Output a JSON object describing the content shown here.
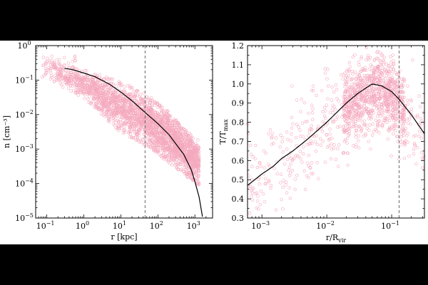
{
  "chart_data": [
    {
      "type": "scatter",
      "panel": "left",
      "title": "",
      "xlabel": "r [kpc]",
      "ylabel": "n [cm⁻³]",
      "xscale": "log",
      "yscale": "log",
      "xlim": [
        0.05,
        3000
      ],
      "ylim": [
        1e-05,
        1
      ],
      "grid": false,
      "x_ticks": [
        {
          "value": 0.1,
          "base": "10",
          "exp": "−1"
        },
        {
          "value": 1,
          "base": "10",
          "exp": "0"
        },
        {
          "value": 10,
          "base": "10",
          "exp": "1"
        },
        {
          "value": 100,
          "base": "10",
          "exp": "2"
        },
        {
          "value": 1000,
          "base": "10",
          "exp": "3"
        }
      ],
      "y_ticks": [
        {
          "value": 1e-05,
          "base": "10",
          "exp": "−5"
        },
        {
          "value": 0.0001,
          "base": "10",
          "exp": "−4"
        },
        {
          "value": 0.001,
          "base": "10",
          "exp": "−3"
        },
        {
          "value": 0.01,
          "base": "10",
          "exp": "−2"
        },
        {
          "value": 0.1,
          "base": "10",
          "exp": "−1"
        },
        {
          "value": 1,
          "base": "10",
          "exp": "0"
        }
      ],
      "vline_x": 45,
      "model_curve": {
        "x": [
          0.3,
          0.5,
          1,
          2,
          5,
          10,
          20,
          50,
          100,
          200,
          500,
          800,
          1000,
          1300,
          1600
        ],
        "y": [
          0.22,
          0.2,
          0.16,
          0.125,
          0.075,
          0.045,
          0.025,
          0.0105,
          0.0055,
          0.0026,
          0.0007,
          0.00025,
          0.000115,
          4e-05,
          1.1e-05
        ]
      },
      "scatter_cloud": {
        "description_points": [
          [
            0.08,
            0.4
          ],
          [
            0.15,
            0.2
          ],
          [
            0.5,
            0.15
          ],
          [
            1,
            0.09
          ],
          [
            2,
            0.05
          ],
          [
            5,
            0.03
          ],
          [
            10,
            0.02
          ],
          [
            20,
            0.012
          ],
          [
            50,
            0.006
          ],
          [
            100,
            0.003
          ],
          [
            200,
            0.0015
          ],
          [
            500,
            0.0006
          ],
          [
            1000,
            0.0003
          ]
        ],
        "upper_envelope": [
          [
            0.08,
            0.45
          ],
          [
            1,
            0.2
          ],
          [
            10,
            0.09
          ],
          [
            50,
            0.04
          ],
          [
            200,
            0.012
          ],
          [
            1000,
            0.002
          ]
        ],
        "lower_envelope": [
          [
            0.08,
            0.12
          ],
          [
            1,
            0.03
          ],
          [
            10,
            0.003
          ],
          [
            50,
            0.0012
          ],
          [
            200,
            0.0004
          ],
          [
            1200,
            9e-05
          ]
        ]
      },
      "marker_color": "#f4a9be",
      "curve_color": "#000000"
    },
    {
      "type": "scatter",
      "panel": "right",
      "title": "",
      "xlabel": "r/R",
      "xlabel_sub": "vir",
      "ylabel": "T/T",
      "ylabel_sub": "max",
      "xscale": "log",
      "yscale": "linear",
      "xlim": [
        0.0006,
        0.32
      ],
      "ylim": [
        0.3,
        1.2
      ],
      "grid": false,
      "x_ticks": [
        {
          "value": 0.001,
          "base": "10",
          "exp": "−3"
        },
        {
          "value": 0.01,
          "base": "10",
          "exp": "−2"
        },
        {
          "value": 0.1,
          "base": "10",
          "exp": "−1"
        }
      ],
      "y_ticks": [
        0.3,
        0.4,
        0.5,
        0.6,
        0.7,
        0.8,
        0.9,
        1.0,
        1.1,
        1.2
      ],
      "vline_x": 0.13,
      "model_curve": {
        "x": [
          0.0006,
          0.001,
          0.0015,
          0.002,
          0.003,
          0.005,
          0.01,
          0.02,
          0.03,
          0.05,
          0.07,
          0.1,
          0.13,
          0.2,
          0.32
        ],
        "y": [
          0.47,
          0.53,
          0.57,
          0.61,
          0.65,
          0.71,
          0.8,
          0.9,
          0.95,
          1.0,
          0.99,
          0.96,
          0.92,
          0.84,
          0.74
        ]
      },
      "scatter_cloud": {
        "x_range": [
          0.0006,
          0.32
        ],
        "dense_region": {
          "x": [
            0.02,
            0.15
          ],
          "y": [
            0.75,
            1.15
          ]
        }
      },
      "marker_color": "#f4a9be",
      "curve_color": "#000000"
    }
  ]
}
